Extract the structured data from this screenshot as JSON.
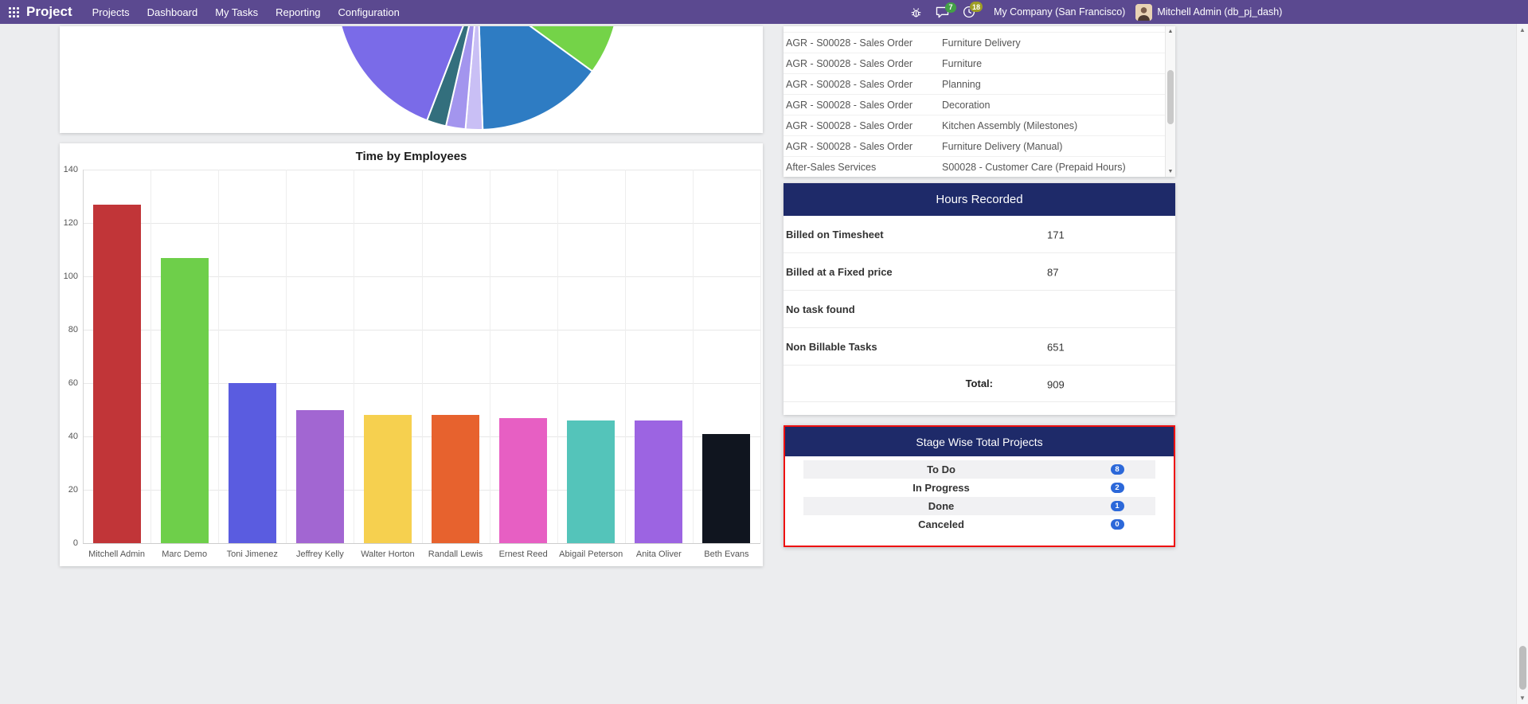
{
  "topbar": {
    "app": "Project",
    "menu": [
      "Projects",
      "Dashboard",
      "My Tasks",
      "Reporting",
      "Configuration"
    ],
    "message_count": "7",
    "activity_count": "18",
    "company": "My Company (San Francisco)",
    "user": "Mitchell Admin (db_pj_dash)"
  },
  "chart_data": [
    {
      "type": "pie",
      "title": "",
      "slices": [
        {
          "color": "#74d348",
          "start_deg": 6,
          "end_deg": 36
        },
        {
          "color": "#2e7cc3",
          "start_deg": 36,
          "end_deg": 88
        },
        {
          "color": "#c9bff5",
          "start_deg": 88,
          "end_deg": 95
        },
        {
          "color": "#a395ee",
          "start_deg": 95,
          "end_deg": 103
        },
        {
          "color": "#336f7d",
          "start_deg": 103,
          "end_deg": 111
        },
        {
          "color": "#7a6be8",
          "start_deg": 111,
          "end_deg": 200
        }
      ]
    },
    {
      "type": "bar",
      "title": "Time by Employees",
      "categories": [
        "Mitchell Admin",
        "Marc Demo",
        "Toni Jimenez",
        "Jeffrey Kelly",
        "Walter Horton",
        "Randall Lewis",
        "Ernest Reed",
        "Abigail Peterson",
        "Anita Oliver",
        "Beth Evans"
      ],
      "values": [
        127,
        107,
        60,
        50,
        48,
        48,
        47,
        46,
        46,
        41
      ],
      "colors": [
        "#c13538",
        "#6ecf4a",
        "#5a5ce0",
        "#a266d2",
        "#f6d04f",
        "#e7622e",
        "#e75fc3",
        "#54c4ba",
        "#9c64e2",
        "#10151f"
      ],
      "ylim": [
        0,
        140
      ],
      "ytick_step": 20,
      "grid": true,
      "xlabel": "",
      "ylabel": ""
    }
  ],
  "tasks_table": {
    "rows": [
      {
        "project": "AGR - S00028 - Sales Order",
        "task": "Furniture Delivery"
      },
      {
        "project": "AGR - S00028 - Sales Order",
        "task": "Furniture"
      },
      {
        "project": "AGR - S00028 - Sales Order",
        "task": "Planning"
      },
      {
        "project": "AGR - S00028 - Sales Order",
        "task": "Decoration"
      },
      {
        "project": "AGR - S00028 - Sales Order",
        "task": "Kitchen Assembly (Milestones)"
      },
      {
        "project": "AGR - S00028 - Sales Order",
        "task": "Furniture Delivery (Manual)"
      },
      {
        "project": "After-Sales Services",
        "task": "S00028 - Customer Care (Prepaid Hours)"
      }
    ]
  },
  "hours_recorded": {
    "title": "Hours Recorded",
    "rows": [
      {
        "label": "Billed on Timesheet",
        "value": "171"
      },
      {
        "label": "Billed at a Fixed price",
        "value": "87"
      },
      {
        "label": "No task found",
        "value": ""
      },
      {
        "label": "Non Billable Tasks",
        "value": "651"
      }
    ],
    "total_label": "Total:",
    "total_value": "909"
  },
  "stage_wise": {
    "title": "Stage Wise Total Projects",
    "rows": [
      {
        "label": "To Do",
        "count": "8"
      },
      {
        "label": "In Progress",
        "count": "2"
      },
      {
        "label": "Done",
        "count": "1"
      },
      {
        "label": "Canceled",
        "count": "0"
      }
    ]
  },
  "colors": {
    "navbar": "#5b4990",
    "panel_header": "#1e2a69",
    "stage_badge": "#2c68d9",
    "highlight_border": "#ee1111",
    "message_badge": "#43a047",
    "activity_badge": "#9e9d24"
  }
}
